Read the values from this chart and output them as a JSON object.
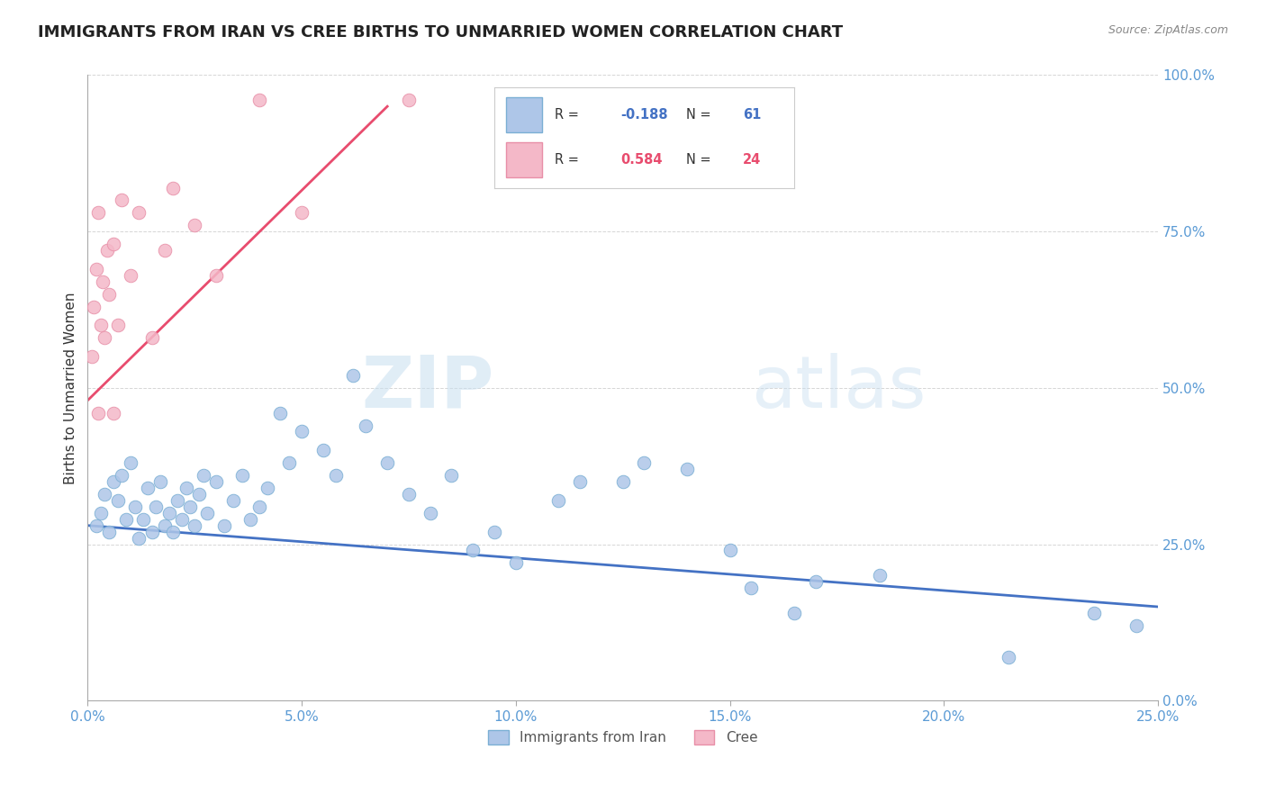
{
  "title": "IMMIGRANTS FROM IRAN VS CREE BIRTHS TO UNMARRIED WOMEN CORRELATION CHART",
  "source": "Source: ZipAtlas.com",
  "ylabel": "Births to Unmarried Women",
  "xlim": [
    0.0,
    25.0
  ],
  "ylim": [
    0.0,
    100.0
  ],
  "yticks": [
    0.0,
    25.0,
    50.0,
    75.0,
    100.0
  ],
  "xticks": [
    0.0,
    5.0,
    10.0,
    15.0,
    20.0,
    25.0
  ],
  "legend_entries": [
    {
      "label": "Immigrants from Iran",
      "color": "#aec6e8",
      "edge": "#7bafd4",
      "R": -0.188,
      "N": 61,
      "line_color": "#4472c4"
    },
    {
      "label": "Cree",
      "color": "#f4b8c8",
      "edge": "#e88fa8",
      "R": 0.584,
      "N": 24,
      "line_color": "#e84c6e"
    }
  ],
  "watermark": "ZIPatlas",
  "blue_scatter": [
    [
      0.2,
      28
    ],
    [
      0.3,
      30
    ],
    [
      0.4,
      33
    ],
    [
      0.5,
      27
    ],
    [
      0.6,
      35
    ],
    [
      0.7,
      32
    ],
    [
      0.8,
      36
    ],
    [
      0.9,
      29
    ],
    [
      1.0,
      38
    ],
    [
      1.1,
      31
    ],
    [
      1.2,
      26
    ],
    [
      1.3,
      29
    ],
    [
      1.4,
      34
    ],
    [
      1.5,
      27
    ],
    [
      1.6,
      31
    ],
    [
      1.7,
      35
    ],
    [
      1.8,
      28
    ],
    [
      1.9,
      30
    ],
    [
      2.0,
      27
    ],
    [
      2.1,
      32
    ],
    [
      2.2,
      29
    ],
    [
      2.3,
      34
    ],
    [
      2.4,
      31
    ],
    [
      2.5,
      28
    ],
    [
      2.6,
      33
    ],
    [
      2.7,
      36
    ],
    [
      2.8,
      30
    ],
    [
      3.0,
      35
    ],
    [
      3.2,
      28
    ],
    [
      3.4,
      32
    ],
    [
      3.6,
      36
    ],
    [
      3.8,
      29
    ],
    [
      4.0,
      31
    ],
    [
      4.2,
      34
    ],
    [
      4.5,
      46
    ],
    [
      4.7,
      38
    ],
    [
      5.0,
      43
    ],
    [
      5.5,
      40
    ],
    [
      5.8,
      36
    ],
    [
      6.2,
      52
    ],
    [
      6.5,
      44
    ],
    [
      7.0,
      38
    ],
    [
      7.5,
      33
    ],
    [
      8.0,
      30
    ],
    [
      8.5,
      36
    ],
    [
      9.0,
      24
    ],
    [
      9.5,
      27
    ],
    [
      10.0,
      22
    ],
    [
      11.0,
      32
    ],
    [
      11.5,
      35
    ],
    [
      12.5,
      35
    ],
    [
      13.0,
      38
    ],
    [
      14.0,
      37
    ],
    [
      15.0,
      24
    ],
    [
      15.5,
      18
    ],
    [
      16.5,
      14
    ],
    [
      17.0,
      19
    ],
    [
      18.5,
      20
    ],
    [
      21.5,
      7
    ],
    [
      23.5,
      14
    ],
    [
      24.5,
      12
    ]
  ],
  "pink_scatter": [
    [
      0.1,
      55
    ],
    [
      0.15,
      63
    ],
    [
      0.2,
      69
    ],
    [
      0.25,
      78
    ],
    [
      0.3,
      60
    ],
    [
      0.35,
      67
    ],
    [
      0.4,
      58
    ],
    [
      0.45,
      72
    ],
    [
      0.5,
      65
    ],
    [
      0.6,
      73
    ],
    [
      0.7,
      60
    ],
    [
      0.8,
      80
    ],
    [
      1.0,
      68
    ],
    [
      1.2,
      78
    ],
    [
      1.5,
      58
    ],
    [
      1.8,
      72
    ],
    [
      2.0,
      82
    ],
    [
      2.5,
      76
    ],
    [
      3.0,
      68
    ],
    [
      4.0,
      96
    ],
    [
      5.0,
      78
    ],
    [
      7.5,
      96
    ],
    [
      0.25,
      46
    ],
    [
      0.6,
      46
    ]
  ],
  "blue_line": {
    "x0": 0.0,
    "y0": 28.0,
    "x1": 25.0,
    "y1": 15.0
  },
  "pink_line": {
    "x0": 0.0,
    "y0": 48.0,
    "x1": 7.0,
    "y1": 95.0
  },
  "title_fontsize": 13,
  "axis_label_fontsize": 11,
  "tick_fontsize": 11
}
